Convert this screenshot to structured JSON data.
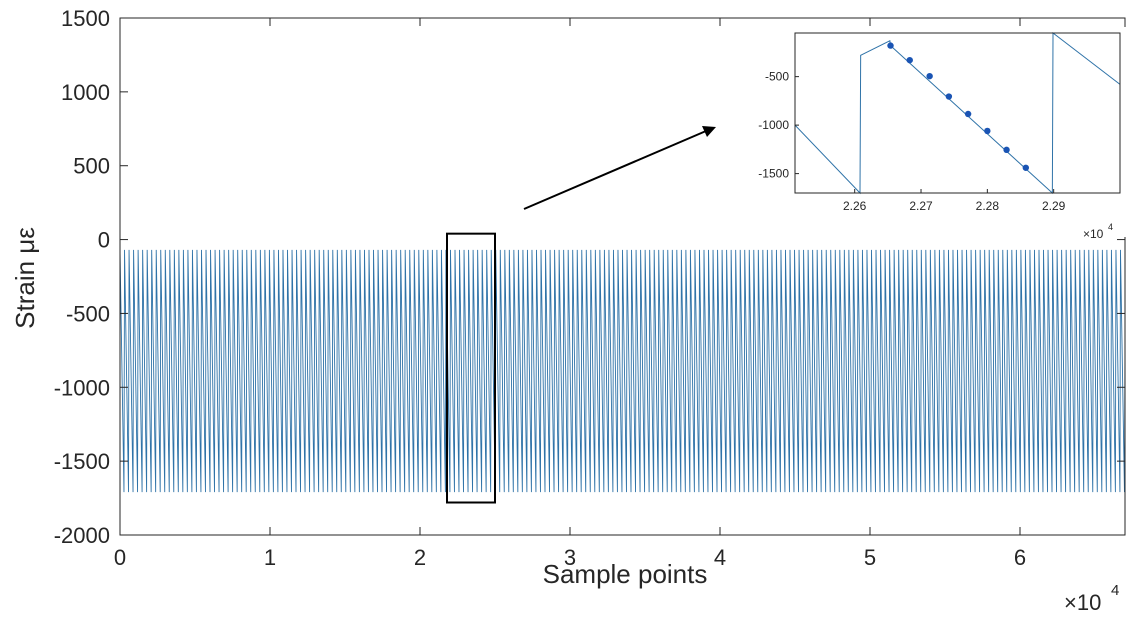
{
  "chart_data": [
    {
      "type": "line",
      "title": "",
      "xlabel": "Sample points",
      "ylabel": "Strain με",
      "x_exponent_label": "×10",
      "x_exponent_power": "4",
      "xlim": [
        0,
        6.7
      ],
      "ylim": [
        -2000,
        1500
      ],
      "x_ticks": [
        "0",
        "1",
        "2",
        "3",
        "4",
        "5",
        "6"
      ],
      "y_ticks": [
        "-2000",
        "-1500",
        "-1000",
        "-500",
        "0",
        "500",
        "1000",
        "1500"
      ],
      "grid": false,
      "line_color": "#2f73a8",
      "series": [
        {
          "signal": "sawtooth",
          "cycles": 222,
          "min": -1710,
          "max": -70,
          "x_start": 0,
          "x_end": 6.7
        }
      ],
      "highlight_box": {
        "x_range": [
          2.18,
          2.5
        ],
        "y_range": [
          -1780,
          40
        ]
      }
    },
    {
      "type": "line",
      "title": "",
      "xlabel": "",
      "ylabel": "",
      "x_exponent_label": "×10",
      "x_exponent_power": "4",
      "xlim": [
        2.251,
        2.3
      ],
      "ylim": [
        -1700,
        -50
      ],
      "x_ticks": [
        "2.26",
        "2.27",
        "2.28",
        "2.29"
      ],
      "y_ticks": [
        "-1500",
        "-1000",
        "-500"
      ],
      "grid": false,
      "line_color": "#2f73a8",
      "marker_color": "#1a54b4",
      "series": [
        {
          "x": [
            2.251,
            2.2608,
            2.2609,
            2.2653,
            2.2654,
            2.2898,
            2.2899,
            2.3
          ],
          "y": [
            -1000,
            -1700,
            -280,
            -130,
            -180,
            -1700,
            -50,
            -580
          ]
        }
      ],
      "markers": {
        "x": [
          2.2654,
          2.2683,
          2.2713,
          2.2742,
          2.2771,
          2.28,
          2.2829,
          2.2858
        ],
        "y": [
          -180,
          -330,
          -495,
          -705,
          -885,
          -1060,
          -1255,
          -1440
        ]
      }
    }
  ]
}
